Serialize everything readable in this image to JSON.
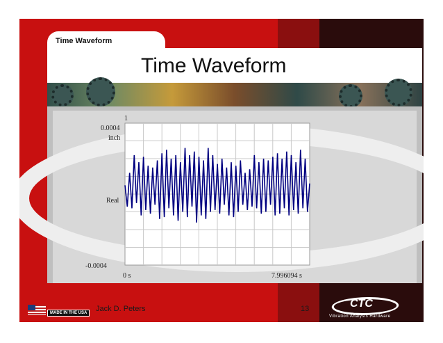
{
  "slide": {
    "tab_label": "Time Waveform",
    "title": "Time Waveform",
    "footer_author": "Jack D. Peters",
    "page_number": "13",
    "made_in_label": "MADE IN THE USA",
    "logo_text": "CTC",
    "logo_subtitle": "Vibration Analysis Hardware"
  },
  "colors": {
    "slide_red": "#c81010",
    "trace": "#000080",
    "plot_bg": "#ffffff",
    "grid": "#c8c8c8"
  },
  "chart_data": {
    "type": "line",
    "xlabel_left": "0  s",
    "xlabel_right": "7.996094  s",
    "y_top_label": "0.0004",
    "y_unit_label": "inch",
    "y_mid_label": "Real",
    "y_bottom_label": "-0.0004",
    "corner_label": "1",
    "xlim": [
      0,
      7.996094
    ],
    "ylim": [
      -0.0004,
      0.0004
    ],
    "grid": true,
    "grid_divisions": {
      "x": 10,
      "y": 8
    },
    "series": [
      {
        "x": [
          0,
          0.1,
          0.2,
          0.3,
          0.4,
          0.5,
          0.6,
          0.7,
          0.8,
          0.9,
          1.0,
          1.1,
          1.2,
          1.3,
          1.4,
          1.5,
          1.6,
          1.7,
          1.8,
          1.9,
          2.0,
          2.1,
          2.2,
          2.3,
          2.4,
          2.5,
          2.6,
          2.7,
          2.8,
          2.9,
          3.0,
          3.1,
          3.2,
          3.3,
          3.4,
          3.5,
          3.6,
          3.7,
          3.8,
          3.9,
          4.0,
          4.1,
          4.2,
          4.3,
          4.4,
          4.5,
          4.6,
          4.7,
          4.8,
          4.9,
          5.0,
          5.1,
          5.2,
          5.3,
          5.4,
          5.5,
          5.6,
          5.7,
          5.8,
          5.9,
          6.0,
          6.1,
          6.2,
          6.3,
          6.4,
          6.5,
          6.6,
          6.7,
          6.8,
          6.9,
          7.0,
          7.1,
          7.2,
          7.3,
          7.4,
          7.5,
          7.6,
          7.7,
          7.8,
          7.9,
          7.996094
        ],
        "values": [
          5e-05,
          -7e-05,
          0.00012,
          -8e-05,
          0.00022,
          -5e-05,
          0.00018,
          -0.00012,
          0.00021,
          -9e-05,
          0.00016,
          -0.00011,
          0.00015,
          -6e-05,
          0.00019,
          -0.00014,
          0.00023,
          -0.00013,
          0.00025,
          -8e-05,
          0.0002,
          -0.00012,
          0.00022,
          -0.00015,
          0.00018,
          -0.0001,
          0.00026,
          -0.00013,
          0.00022,
          -7e-05,
          0.00024,
          -0.00016,
          0.00021,
          -0.00012,
          0.00019,
          -0.00014,
          0.00026,
          -0.0001,
          0.00022,
          -9e-05,
          0.00017,
          -0.00011,
          0.0002,
          -6e-05,
          0.00015,
          -0.00012,
          0.00018,
          -0.00013,
          0.00016,
          -0.0001,
          0.00019,
          -6e-05,
          0.00012,
          -9e-05,
          0.00014,
          -7e-05,
          0.00022,
          -8e-05,
          0.00018,
          -0.00011,
          0.0002,
          -0.0001,
          0.00019,
          -6e-05,
          0.00021,
          -0.00012,
          0.00023,
          -0.00011,
          0.0002,
          -8e-05,
          0.00024,
          -0.00012,
          0.00022,
          -9e-05,
          0.00018,
          -0.00011,
          0.00025,
          -8e-05,
          0.0002,
          -0.0001,
          6e-05
        ]
      }
    ]
  }
}
